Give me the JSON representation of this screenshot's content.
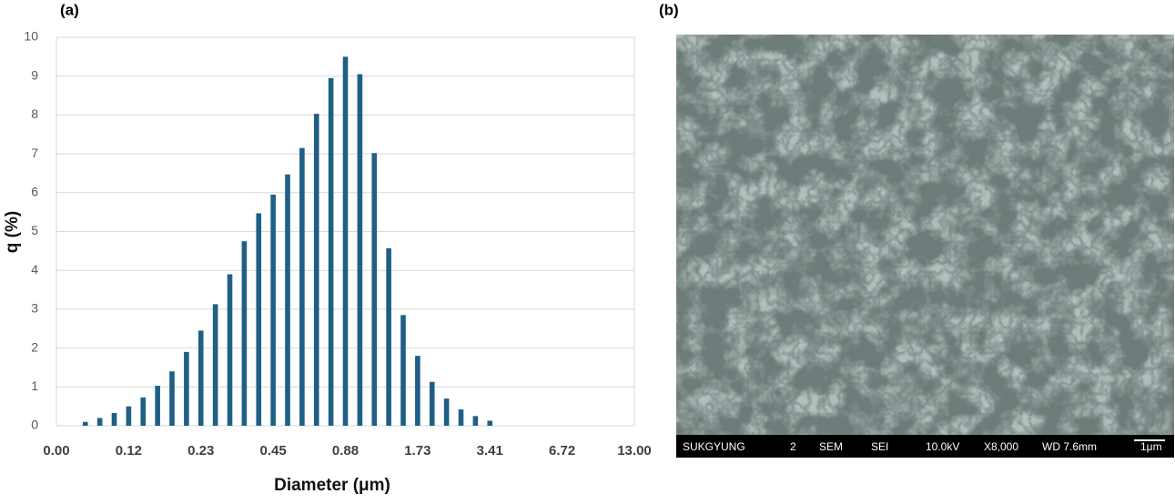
{
  "chart_data": {
    "type": "bar",
    "title": "(a)",
    "x_label": "Diameter (μm)",
    "y_label": "q (%)",
    "categories": [
      "0.00",
      null,
      null,
      null,
      null,
      "0.12",
      null,
      null,
      null,
      null,
      "0.23",
      null,
      null,
      null,
      null,
      "0.45",
      null,
      null,
      null,
      null,
      "0.88",
      null,
      null,
      null,
      null,
      "1.73",
      null,
      null,
      null,
      null,
      "3.41",
      null,
      null,
      null,
      null,
      "6.72",
      null,
      null,
      null,
      null,
      "13.00"
    ],
    "values": [
      null,
      null,
      0.1,
      0.2,
      0.33,
      0.5,
      0.73,
      1.03,
      1.4,
      1.9,
      2.45,
      3.13,
      3.9,
      4.75,
      5.47,
      5.95,
      6.47,
      7.15,
      8.03,
      8.95,
      9.5,
      9.05,
      7.02,
      4.57,
      2.85,
      1.8,
      1.13,
      0.7,
      0.42,
      0.25,
      0.13,
      null,
      null,
      null,
      null,
      null,
      null,
      null,
      null,
      null,
      null
    ],
    "color": "#1f5f86",
    "ylim": [
      0,
      10
    ],
    "yticks": [
      0,
      1,
      2,
      3,
      4,
      5,
      6,
      7,
      8,
      9,
      10
    ],
    "grid": true
  },
  "image": {
    "label": "(b)",
    "footer": [
      "SUKGYUNG",
      "2",
      "SEM",
      "SEI",
      "10.0kV",
      "X8,000",
      "WD 7.6mm",
      "1μm"
    ]
  }
}
